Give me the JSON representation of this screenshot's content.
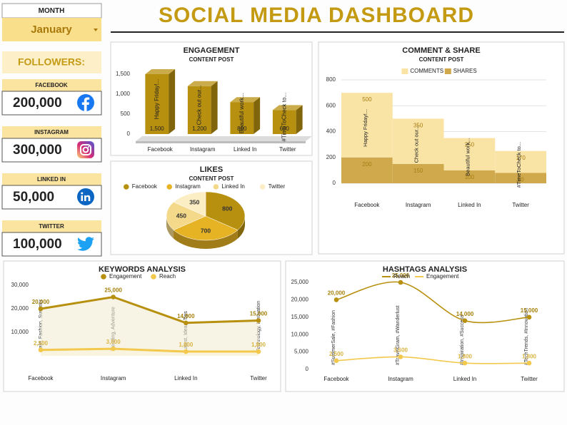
{
  "header": {
    "title": "SOCIAL MEDIA DASHBOARD"
  },
  "month": {
    "label": "MONTH",
    "value": "January"
  },
  "followers": {
    "title": "FOLLOWERS:",
    "cards": [
      {
        "platform": "FACEBOOK",
        "count": "200,000"
      },
      {
        "platform": "INSTAGRAM",
        "count": "300,000"
      },
      {
        "platform": "LINKED IN",
        "count": "50,000"
      },
      {
        "platform": "TWITTER",
        "count": "100,000"
      }
    ]
  },
  "chart_data": [
    {
      "type": "bar",
      "title": "ENGAGEMENT",
      "subtitle": "CONTENT POST",
      "categories": [
        "Facebook",
        "Instagram",
        "Linked In",
        "Twitter"
      ],
      "values": [
        1500,
        1200,
        800,
        600
      ],
      "value_labels": [
        "1,500",
        "1,200",
        "800",
        "600"
      ],
      "annotations": [
        "Happy Friday!...",
        "Check out our...",
        "Beautiful work...",
        "#TimeToCheck to..."
      ],
      "color": "#b8900f",
      "ylim": [
        0,
        1500
      ],
      "yticks": [
        0,
        500,
        {
          "value": 1000,
          "label": "1,000"
        },
        {
          "value": 1500,
          "label": "1,500"
        }
      ]
    },
    {
      "type": "pie",
      "title": "LIKES",
      "subtitle": "CONTENT POST",
      "categories": [
        "Facebook",
        "Instagram",
        "Linked In",
        "Twitter"
      ],
      "values": [
        800,
        700,
        450,
        350
      ],
      "colors": [
        "#b8900f",
        "#e6b325",
        "#f5d98a",
        "#fbeec4"
      ],
      "legend": "top"
    },
    {
      "type": "step",
      "title": "COMMENT & SHARE",
      "subtitle": "CONTENT POST",
      "categories": [
        "Facebook",
        "Instagram",
        "Linked In",
        "Twitter"
      ],
      "series": [
        {
          "name": "COMMENTS",
          "color": "#f9e4a6",
          "values": [
            500,
            350,
            250,
            170
          ]
        },
        {
          "name": "SHARES",
          "color": "#cfa94c",
          "values": [
            200,
            150,
            100,
            80
          ]
        }
      ],
      "annotations": [
        "Happy Friday!...",
        "Check out our...",
        "Beautiful work...",
        "#TimeToCheck to..."
      ],
      "stacked": true,
      "ylim": [
        0,
        800
      ],
      "yticks": [
        0,
        200,
        400,
        600,
        800
      ],
      "grid": true,
      "legend": "top"
    },
    {
      "type": "area",
      "title": "KEYWORDS ANALYSIS",
      "categories": [
        "Facebook",
        "Instagram",
        "Linked In",
        "Twitter"
      ],
      "series": [
        {
          "name": "Engagement",
          "color": "#b8900f",
          "values": [
            20000,
            25000,
            14000,
            15000
          ],
          "value_labels": [
            "20,000",
            "25,000",
            "14,000",
            "15,000"
          ]
        },
        {
          "name": "Reach",
          "color": "#f2c94c",
          "values": [
            2500,
            3000,
            1800,
            1800
          ],
          "value_labels": [
            "2,500",
            "3,000",
            "1,800",
            "1,800"
          ]
        }
      ],
      "annotations": [
        "Sale, Fashion, Summer",
        "Trending, Adventure",
        "Latest, Ideas, Tips",
        "Technology, Innovation"
      ],
      "ylim": [
        0,
        30000
      ],
      "yticks": [
        {
          "value": 10000,
          "label": "10,000"
        },
        {
          "value": 20000,
          "label": "20,000"
        },
        {
          "value": 30000,
          "label": "30,000"
        }
      ],
      "legend": "top"
    },
    {
      "type": "line",
      "title": "HASHTAGS ANALYSIS",
      "categories": [
        "Facebook",
        "Instagram",
        "Linked In",
        "Twitter"
      ],
      "series": [
        {
          "name": "Reach",
          "color": "#b8900f",
          "values": [
            20000,
            25000,
            14000,
            15000
          ],
          "value_labels": [
            "20,000",
            "25,000",
            "14,000",
            "15,000"
          ]
        },
        {
          "name": "Engagement",
          "color": "#f2c94c",
          "values": [
            2500,
            3600,
            1800,
            1800
          ],
          "value_labels": [
            "2,500",
            "3,600",
            "1,800",
            "1,800"
          ]
        }
      ],
      "annotations": [
        "#SummerSale, #Fashion",
        "#TravelGram, #Wanderlust",
        "#Inspiration, #Success",
        "#TechTrends, #Innovation"
      ],
      "smooth": true,
      "ylim": [
        0,
        25000
      ],
      "yticks": [
        0,
        {
          "value": 5000,
          "label": "5,000"
        },
        {
          "value": 10000,
          "label": "10,000"
        },
        {
          "value": 15000,
          "label": "15,000"
        },
        {
          "value": 20000,
          "label": "20,000"
        },
        {
          "value": 25000,
          "label": "25,000"
        }
      ],
      "legend": "top"
    }
  ]
}
